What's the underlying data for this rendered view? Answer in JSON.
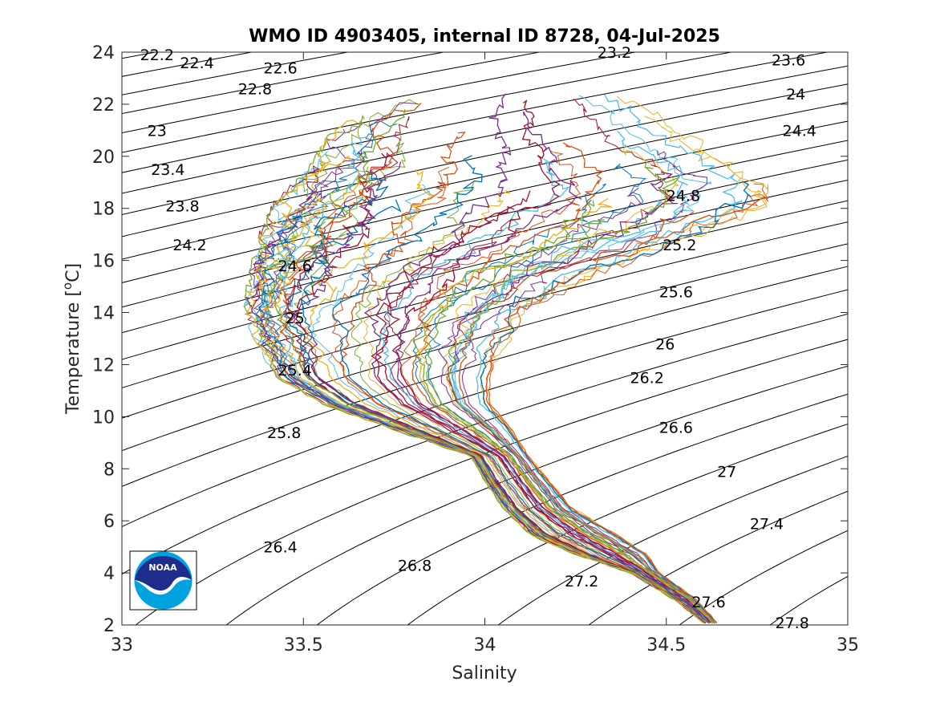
{
  "chart_data": {
    "type": "line",
    "title": "WMO ID 4903405, internal ID 8728, 04-Jul-2025",
    "xlabel": "Salinity",
    "ylabel_prefix": "Temperature [",
    "ylabel_sup": "o",
    "ylabel_suffix": "C]",
    "xlim": [
      33,
      35
    ],
    "ylim": [
      2,
      24
    ],
    "x_ticks": [
      33,
      33.5,
      34,
      34.5,
      35
    ],
    "x_tick_labels": [
      "33",
      "33.5",
      "34",
      "34.5",
      "35"
    ],
    "y_ticks": [
      2,
      4,
      6,
      8,
      10,
      12,
      14,
      16,
      18,
      20,
      22,
      24
    ],
    "y_tick_labels": [
      "2",
      "4",
      "6",
      "8",
      "10",
      "12",
      "14",
      "16",
      "18",
      "20",
      "22",
      "24"
    ],
    "grid": false,
    "density_contour_step": 0.2,
    "density_contour_range": [
      21.6,
      28.2
    ],
    "contour_labels": [
      {
        "text": "22.2",
        "s": 33.05,
        "t": 23.9
      },
      {
        "text": "22.4",
        "s": 33.16,
        "t": 23.6
      },
      {
        "text": "22.6",
        "s": 33.39,
        "t": 23.4
      },
      {
        "text": "22.8",
        "s": 33.32,
        "t": 22.6
      },
      {
        "text": "23",
        "s": 33.07,
        "t": 21.0
      },
      {
        "text": "23.2",
        "s": 34.31,
        "t": 24.0
      },
      {
        "text": "23.4",
        "s": 33.08,
        "t": 19.5
      },
      {
        "text": "23.6",
        "s": 34.79,
        "t": 23.7
      },
      {
        "text": "23.8",
        "s": 33.12,
        "t": 18.1
      },
      {
        "text": "24",
        "s": 34.83,
        "t": 22.4
      },
      {
        "text": "24.2",
        "s": 33.14,
        "t": 16.6
      },
      {
        "text": "24.4",
        "s": 34.82,
        "t": 21.0
      },
      {
        "text": "24.6",
        "s": 33.43,
        "t": 15.8
      },
      {
        "text": "24.8",
        "s": 34.5,
        "t": 18.5
      },
      {
        "text": "25",
        "s": 33.45,
        "t": 13.8
      },
      {
        "text": "25.2",
        "s": 34.49,
        "t": 16.6
      },
      {
        "text": "25.4",
        "s": 33.43,
        "t": 11.8
      },
      {
        "text": "25.6",
        "s": 34.48,
        "t": 14.8
      },
      {
        "text": "25.8",
        "s": 33.4,
        "t": 9.4
      },
      {
        "text": "26",
        "s": 34.47,
        "t": 12.8
      },
      {
        "text": "26.2",
        "s": 34.4,
        "t": 11.5
      },
      {
        "text": "26.4",
        "s": 33.39,
        "t": 5.0
      },
      {
        "text": "26.6",
        "s": 34.48,
        "t": 9.6
      },
      {
        "text": "26.8",
        "s": 33.76,
        "t": 4.3
      },
      {
        "text": "27",
        "s": 34.64,
        "t": 7.9
      },
      {
        "text": "27.2",
        "s": 34.22,
        "t": 3.7
      },
      {
        "text": "27.4",
        "s": 34.73,
        "t": 5.9
      },
      {
        "text": "27.6",
        "s": 34.57,
        "t": 2.9
      },
      {
        "text": "27.8",
        "s": 34.8,
        "t": 2.1
      }
    ],
    "series_colors": [
      "#0072BD",
      "#D95319",
      "#EDB120",
      "#7E2F8E",
      "#77AC30",
      "#4DBEEE",
      "#A2142F"
    ],
    "profile_count": 180,
    "profile_envelope": [
      {
        "t": 2.1,
        "s_min": 34.6,
        "s_max": 34.64
      },
      {
        "t": 3.0,
        "s_min": 34.52,
        "s_max": 34.58
      },
      {
        "t": 4.0,
        "s_min": 34.4,
        "s_max": 34.48
      },
      {
        "t": 4.7,
        "s_min": 34.25,
        "s_max": 34.45
      },
      {
        "t": 5.5,
        "s_min": 34.12,
        "s_max": 34.36
      },
      {
        "t": 6.5,
        "s_min": 34.05,
        "s_max": 34.24
      },
      {
        "t": 7.5,
        "s_min": 34.0,
        "s_max": 34.18
      },
      {
        "t": 8.5,
        "s_min": 33.96,
        "s_max": 34.12
      },
      {
        "t": 9.5,
        "s_min": 33.75,
        "s_max": 34.08
      },
      {
        "t": 10.5,
        "s_min": 33.55,
        "s_max": 34.02
      },
      {
        "t": 11.5,
        "s_min": 33.42,
        "s_max": 34.02
      },
      {
        "t": 12.5,
        "s_min": 33.38,
        "s_max": 34.05
      },
      {
        "t": 14.0,
        "s_min": 33.33,
        "s_max": 34.12
      },
      {
        "t": 15.5,
        "s_min": 33.35,
        "s_max": 34.3
      },
      {
        "t": 17.0,
        "s_min": 33.38,
        "s_max": 34.6
      },
      {
        "t": 18.2,
        "s_min": 33.42,
        "s_max": 34.78
      },
      {
        "t": 19.0,
        "s_min": 33.48,
        "s_max": 34.78
      },
      {
        "t": 19.8,
        "s_min": 33.53,
        "s_max": 34.7
      },
      {
        "t": 20.8,
        "s_min": 33.57,
        "s_max": 34.55
      },
      {
        "t": 21.8,
        "s_min": 33.7,
        "s_max": 34.45
      },
      {
        "t": 22.6,
        "s_min": 33.85,
        "s_max": 34.3
      }
    ]
  },
  "logo": {
    "name": "NOAA",
    "text": "NOAA",
    "colors": {
      "navy": "#1E2D8C",
      "sky": "#00A3E0",
      "white": "#ffffff"
    }
  },
  "colors": {
    "axis": "#262626",
    "contour": "#000000",
    "background": "#ffffff"
  }
}
